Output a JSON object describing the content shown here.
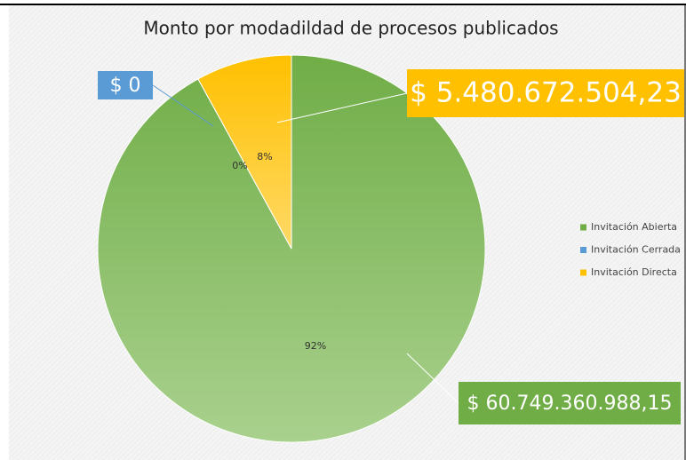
{
  "chart_data": {
    "type": "pie",
    "title": "Monto por modadildad de procesos publicados",
    "categories": [
      "Invitación Abierta",
      "Invitación Cerrada",
      "Invitación Directa"
    ],
    "values": [
      92,
      0,
      8
    ],
    "value_labels": [
      "92%",
      "0%",
      "8%"
    ],
    "colors": [
      "#70ad47",
      "#5b9bd5",
      "#ffc000"
    ],
    "annotations": [
      "$ 60.749.360.988,15",
      "$ 0",
      "$ 5.480.672.504,23"
    ],
    "legend": "right"
  }
}
